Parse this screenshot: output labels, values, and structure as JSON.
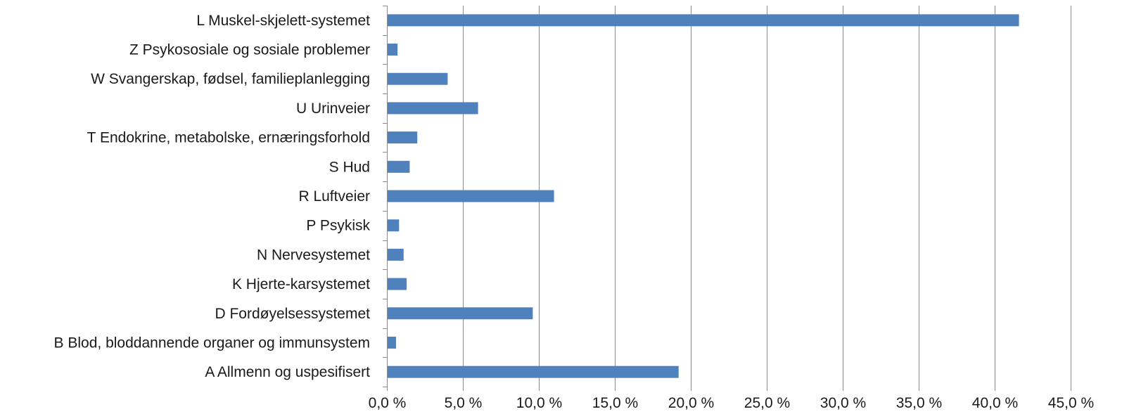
{
  "chart_data": {
    "type": "bar",
    "orientation": "horizontal",
    "categories": [
      "L Muskel-skjelett-systemet",
      "Z Psykososiale og sosiale problemer",
      "W Svangerskap, fødsel, familieplanlegging",
      "U Urinveier",
      "T Endokrine, metabolske, ernæringsforhold",
      "S Hud",
      "R Luftveier",
      "P Psykisk",
      "N Nervesystemet",
      "K Hjerte-karsystemet",
      "D Fordøyelsessystemet",
      "B Blod, bloddannende organer og immunsystem",
      "A Allmenn og uspesifisert"
    ],
    "values": [
      41.6,
      0.7,
      4.0,
      6.0,
      2.0,
      1.5,
      11.0,
      0.8,
      1.1,
      1.3,
      9.6,
      0.6,
      19.2
    ],
    "tick_labels": [
      "0,0 %",
      "5,0 %",
      "10,0 %",
      "15,0 %",
      "20,0 %",
      "25,0 %",
      "30,0 %",
      "35,0 %",
      "40,0 %",
      "45,0 %"
    ],
    "xlim": [
      0,
      45
    ],
    "bar_color": "#4f81bd",
    "grid": true,
    "legend": "none"
  }
}
